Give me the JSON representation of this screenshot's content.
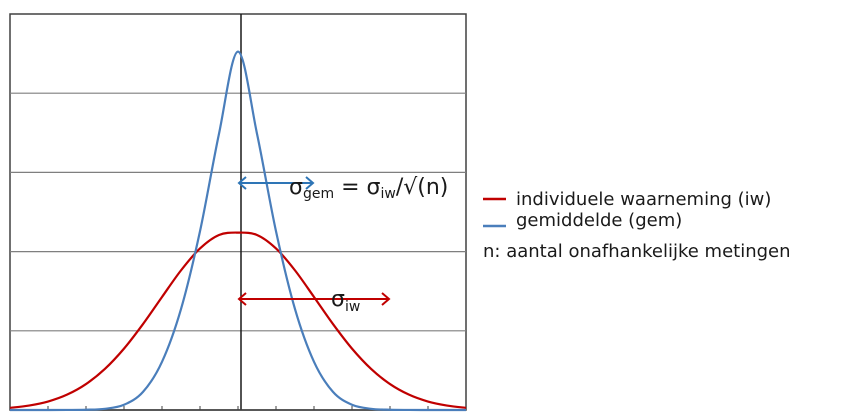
{
  "chart_data": {
    "type": "line",
    "title": "",
    "xlabel": "",
    "ylabel": "",
    "x": [
      -3.0,
      -2.75,
      -2.5,
      -2.25,
      -2.0,
      -1.75,
      -1.5,
      -1.25,
      -1.0,
      -0.75,
      -0.5,
      -0.25,
      0.0,
      0.25,
      0.5,
      0.75,
      1.0,
      1.25,
      1.5,
      1.75,
      2.0,
      2.25,
      2.5,
      2.75,
      3.0
    ],
    "xlim": [
      -3.0,
      3.0
    ],
    "ylim": [
      0,
      1.0
    ],
    "grid": "horizontal",
    "series": [
      {
        "name": "individuele waarneming (iw)",
        "color": "#c00000",
        "values": [
          0.0054,
          0.0112,
          0.0214,
          0.0387,
          0.0655,
          0.104,
          0.155,
          0.217,
          0.2854,
          0.3526,
          0.408,
          0.442,
          0.448,
          0.442,
          0.408,
          0.3526,
          0.2854,
          0.217,
          0.155,
          0.104,
          0.0655,
          0.0387,
          0.0214,
          0.0112,
          0.0054
        ]
      },
      {
        "name": "gemiddelde (gem)",
        "color": "#4a7ebb",
        "values": [
          0.0,
          0.0,
          0.0,
          0.0001,
          0.0006,
          0.003,
          0.0132,
          0.0457,
          0.1217,
          0.2549,
          0.4514,
          0.6977,
          0.905,
          0.6977,
          0.4514,
          0.2549,
          0.1217,
          0.0457,
          0.0132,
          0.003,
          0.0006,
          0.0001,
          0.0,
          0.0,
          0.0
        ]
      }
    ],
    "annotations": {
      "sigma_gem": {
        "sigma": "σ",
        "sub": "gem",
        "eq": " = ",
        "sigma2": "σ",
        "sub2": "iw",
        "rest": "/√(n)",
        "x_from": 0.0,
        "x_to": 1.0
      },
      "sigma_iw": {
        "sigma": "σ",
        "sub": "iw",
        "x_from": 0.0,
        "x_to": 2.0
      }
    },
    "legend": {
      "position": "right",
      "note": "n: aantal onafhankelijke metingen"
    }
  }
}
